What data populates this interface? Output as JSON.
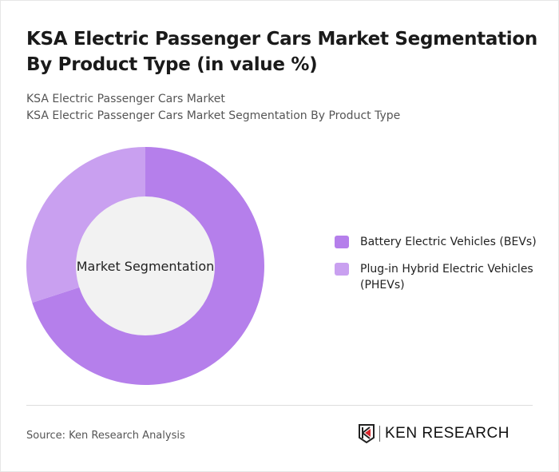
{
  "title": "KSA Electric Passenger Cars Market Segmentation By Product Type (in value %)",
  "subtitles": [
    "KSA Electric Passenger Cars Market",
    "KSA Electric Passenger Cars Market Segmentation By Product Type"
  ],
  "source": "Source: Ken Research Analysis",
  "logo_text": "KEN RESEARCH",
  "chart_data": {
    "type": "pie",
    "donut": true,
    "center_label": "Market Segmentation",
    "legend_position": "right",
    "categories": [
      "Battery Electric Vehicles (BEVs)",
      "Plug-in Hybrid Electric Vehicles (PHEVs)"
    ],
    "values": [
      70,
      30
    ],
    "colors": [
      "#b57feb",
      "#c9a0f0"
    ],
    "hole_color": "#f2f2f2"
  }
}
